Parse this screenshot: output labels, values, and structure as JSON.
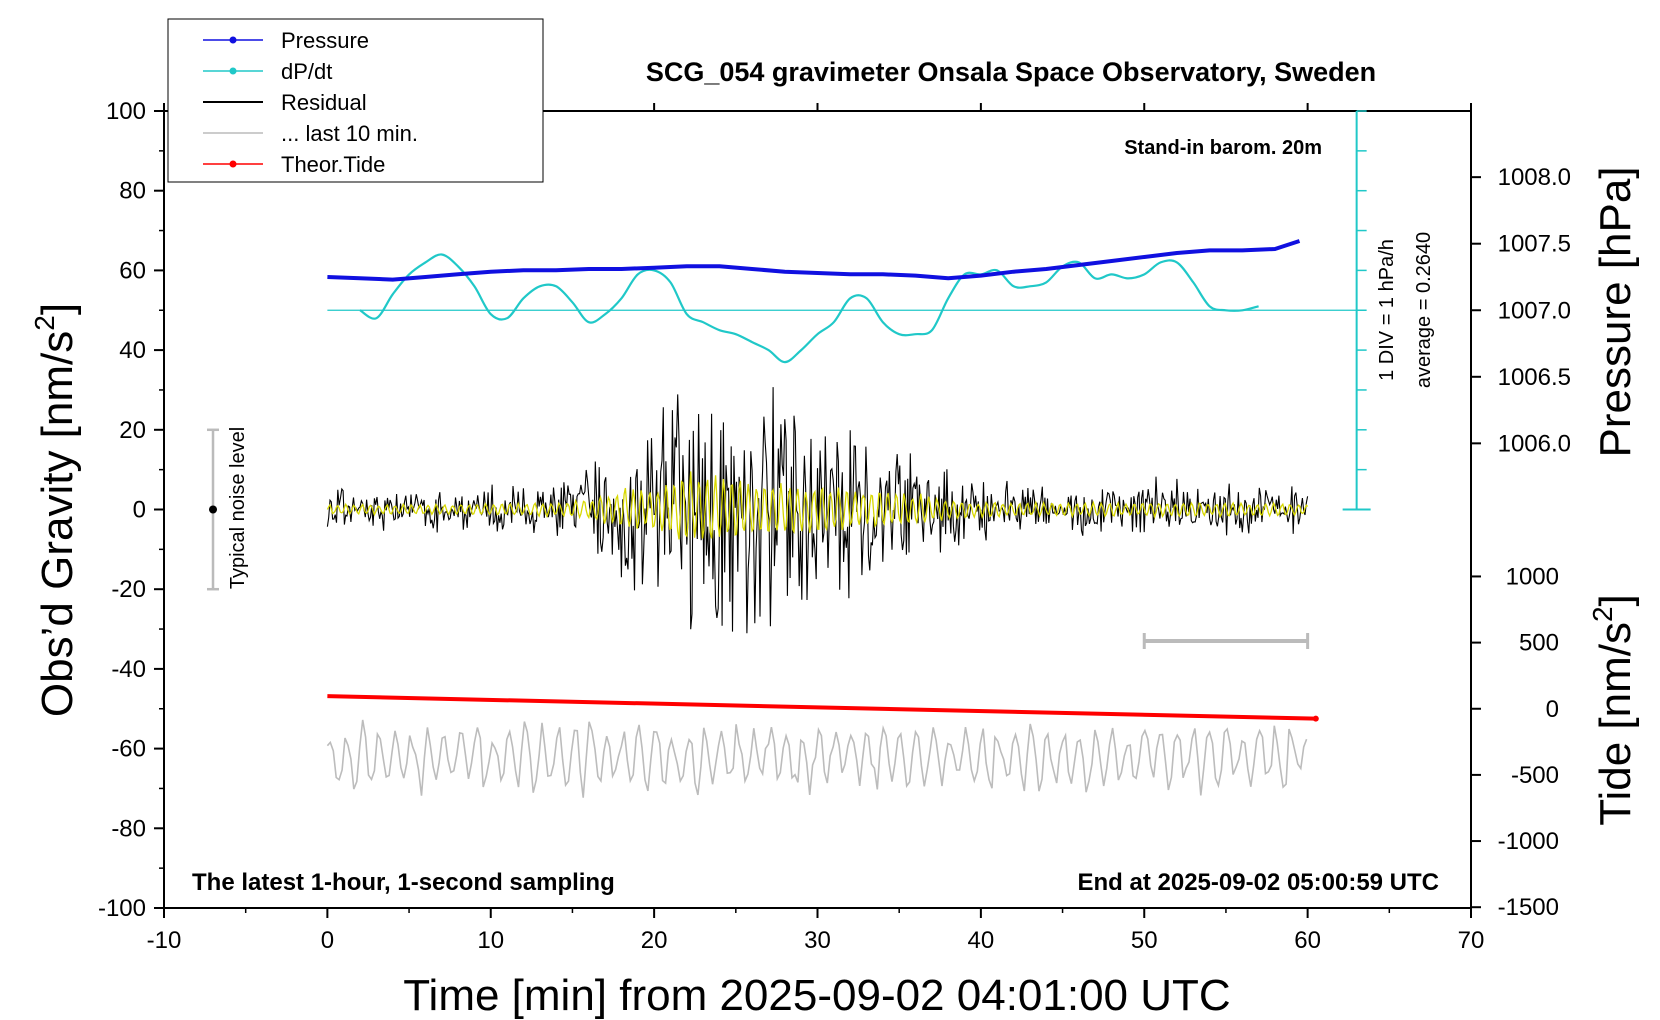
{
  "chart_data": {
    "type": "line",
    "title": "SCG_054 gravimeter Onsala Space Observatory, Sweden",
    "xlabel": "Time [min] from 2025-09-02 04:01:00 UTC",
    "ylabel_left": "Obs’d Gravity [nm/s",
    "ylabel_left_sup": "2",
    "ylabel_left_end": "]",
    "ylabel_right_top": "Pressure [hPa]",
    "ylabel_right_bottom": "Tide [nm/s",
    "ylabel_right_bottom_sup": "2",
    "ylabel_right_bottom_end": "]",
    "xlim": [
      -10,
      70
    ],
    "ylim": [
      -100,
      100
    ],
    "x_ticks": [
      "-10",
      "0",
      "10",
      "20",
      "30",
      "40",
      "50",
      "60",
      "70"
    ],
    "y_ticks": [
      "100",
      "80",
      "60",
      "40",
      "20",
      "0",
      "-20",
      "-40",
      "-60",
      "-80",
      "-100"
    ],
    "pressure_ticks": [
      "1008.0",
      "1007.5",
      "1007.0",
      "1006.5",
      "1006.0"
    ],
    "pressure_ticks_values": [
      1008.0,
      1007.5,
      1007.0,
      1006.5,
      1006.0
    ],
    "tide_ticks": [
      "1000",
      "500",
      "0",
      "-500",
      "-1000",
      "-1500"
    ],
    "tide_ticks_values": [
      1000,
      500,
      0,
      -500,
      -1000,
      -1500
    ],
    "legend": {
      "position": "top-left",
      "entries": [
        {
          "label": "Pressure",
          "color": "#1010e0",
          "marker": true
        },
        {
          "label": "dP/dt",
          "color": "#20c8c8",
          "marker": true
        },
        {
          "label": "Residual",
          "color": "#000000",
          "marker": false
        },
        {
          "label": "... last 10 min.",
          "color": "#bbbbbb",
          "marker": false
        },
        {
          "label": "Theor.Tide",
          "color": "#ff0000",
          "marker": true
        }
      ]
    },
    "annotations": {
      "barom": "Stand-in barom. 20m",
      "div_label": "1 DIV = 1 hPa/h",
      "average_label": "average = 0.2640",
      "noise_label": "Typical noise level",
      "bottom_left": "The latest 1-hour, 1-second sampling",
      "bottom_right": "End at 2025-09-02 05:00:59 UTC"
    },
    "noise_level_range": [
      -20,
      20
    ],
    "last10min_bar_x": [
      50,
      60
    ],
    "pressure_series": {
      "name": "Pressure",
      "units": "hPa",
      "x": [
        0,
        2,
        4,
        6,
        8,
        10,
        12,
        14,
        16,
        18,
        20,
        22,
        24,
        26,
        28,
        30,
        32,
        34,
        36,
        38,
        40,
        42,
        44,
        46,
        48,
        50,
        52,
        54,
        56,
        58,
        59.5
      ],
      "y": [
        1007.25,
        1007.24,
        1007.23,
        1007.25,
        1007.27,
        1007.29,
        1007.3,
        1007.3,
        1007.31,
        1007.31,
        1007.32,
        1007.33,
        1007.33,
        1007.31,
        1007.29,
        1007.28,
        1007.27,
        1007.27,
        1007.26,
        1007.24,
        1007.26,
        1007.29,
        1007.31,
        1007.34,
        1007.37,
        1007.4,
        1007.43,
        1007.45,
        1007.45,
        1007.46,
        1007.52
      ]
    },
    "dpdt_series": {
      "name": "dP/dt",
      "units": "hPa/h",
      "x": [
        2,
        3,
        4,
        5,
        6,
        7,
        8,
        9,
        10,
        11,
        12,
        13,
        14,
        15,
        16,
        17,
        18,
        19,
        20,
        21,
        22,
        23,
        24,
        25,
        26,
        27,
        28,
        29,
        30,
        31,
        32,
        33,
        34,
        35,
        36,
        37,
        38,
        39,
        40,
        41,
        42,
        43,
        44,
        45,
        46,
        47,
        48,
        49,
        50,
        51,
        52,
        53,
        54,
        55,
        56,
        57
      ],
      "y": [
        0.0,
        -0.2,
        0.4,
        0.9,
        1.2,
        1.4,
        1.1,
        0.6,
        -0.1,
        -0.2,
        0.3,
        0.6,
        0.6,
        0.2,
        -0.3,
        -0.1,
        0.3,
        0.9,
        1.0,
        0.7,
        -0.1,
        -0.3,
        -0.5,
        -0.6,
        -0.8,
        -1.0,
        -1.3,
        -1.0,
        -0.6,
        -0.3,
        0.3,
        0.3,
        -0.3,
        -0.6,
        -0.6,
        -0.5,
        0.3,
        0.9,
        0.9,
        1.0,
        0.6,
        0.6,
        0.7,
        1.1,
        1.2,
        0.8,
        0.9,
        0.8,
        0.9,
        1.2,
        1.2,
        0.7,
        0.1,
        0.0,
        0.0,
        0.1
      ],
      "average": 0.264
    },
    "residual_envelope": {
      "name": "Residual",
      "units": "nm/s2",
      "x": [
        0,
        5,
        10,
        14,
        16,
        17,
        18,
        19,
        20,
        21,
        22,
        23,
        24,
        25,
        26,
        27,
        28,
        30,
        32,
        34,
        36,
        38,
        40,
        44,
        48,
        52,
        56,
        60
      ],
      "amplitude": [
        6,
        6,
        7,
        8,
        12,
        18,
        26,
        24,
        28,
        35,
        48,
        40,
        42,
        38,
        34,
        32,
        30,
        28,
        26,
        22,
        20,
        12,
        9,
        8,
        8,
        9,
        8,
        7
      ]
    },
    "tide_series": {
      "name": "Theor.Tide",
      "units": "nm/s2",
      "x": [
        0,
        60.5
      ],
      "y": [
        95,
        -75
      ]
    },
    "last10min_series": {
      "name": "... last 10 min.",
      "x": [
        0,
        60
      ],
      "baseline_gravity": -62
    }
  }
}
